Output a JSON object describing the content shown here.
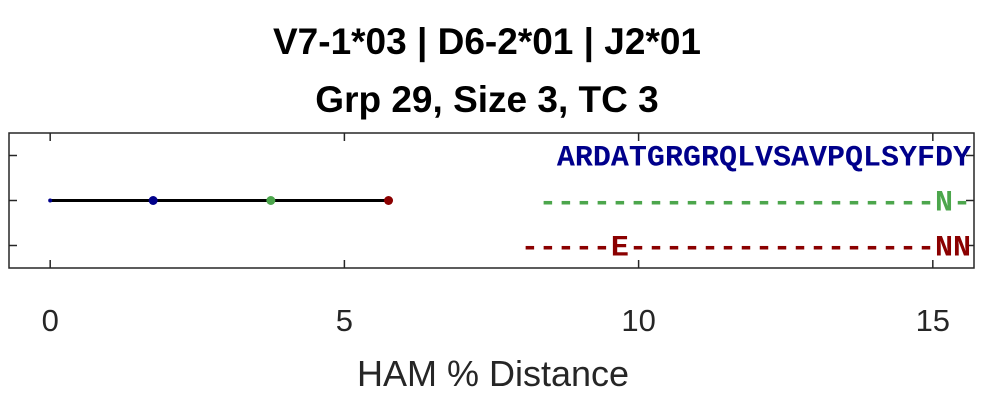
{
  "chart_data": {
    "type": "line",
    "title": [
      "V7-1*03 | D6-2*01 | J2*01",
      "Grp 29, Size 3, TC 3"
    ],
    "xlabel": "HAM % Distance",
    "ylabel": "",
    "xlim": [
      -0.7,
      15.7
    ],
    "xticks": [
      0,
      5,
      10,
      15
    ],
    "tree": {
      "segments": [
        {
          "x": [
            0,
            5.8
          ],
          "y": 2
        }
      ],
      "nodes": [
        {
          "x": 0,
          "y": 2,
          "color": "#00008B",
          "size": "small"
        },
        {
          "x": 1.75,
          "y": 2,
          "color": "#00008B"
        },
        {
          "x": 3.75,
          "y": 2,
          "color": "#4CA64C"
        },
        {
          "x": 5.75,
          "y": 2,
          "color": "#8B0000"
        }
      ]
    },
    "sequences": [
      {
        "text": "ARDATGRGRQLVSAVPQLSYFDY",
        "color": "#00008B"
      },
      {
        "text": "----------------------N-",
        "color": "#4CA64C"
      },
      {
        "text": "-----E-----------------NN",
        "color": "#8B0000"
      }
    ]
  }
}
